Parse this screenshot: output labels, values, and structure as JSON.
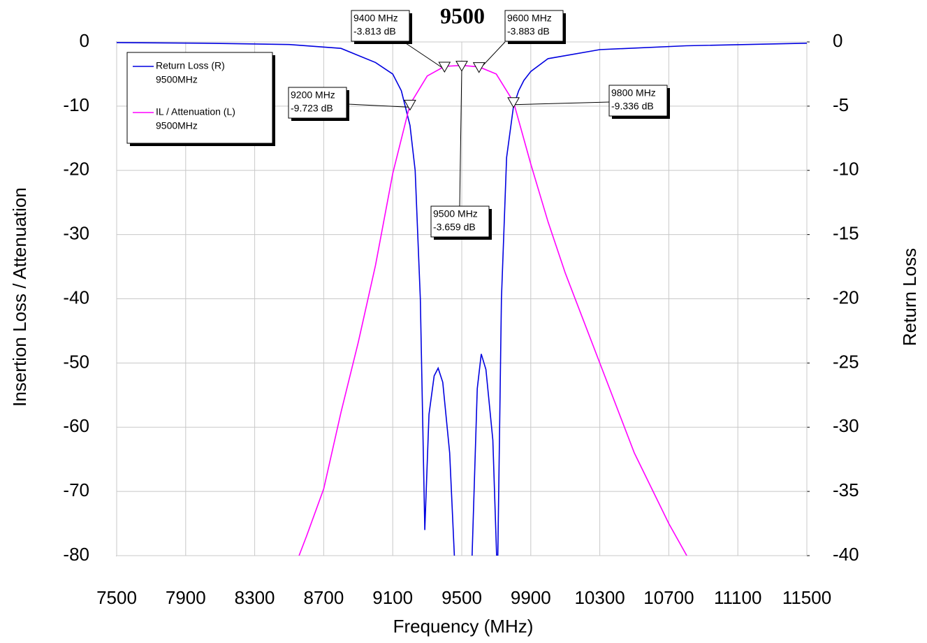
{
  "chart_data": {
    "type": "line",
    "title": "9500",
    "xlabel": "Frequency (MHz)",
    "ylabel": "Insertion Loss / Attenuation",
    "y2label": "Return Loss",
    "xlim": [
      7500,
      11500
    ],
    "xticks": [
      7500,
      7900,
      8300,
      8700,
      9100,
      9500,
      9900,
      10300,
      10700,
      11100,
      11500
    ],
    "ylim": [
      -80,
      0
    ],
    "yticks": [
      0,
      -10,
      -20,
      -30,
      -40,
      -50,
      -60,
      -70,
      -80
    ],
    "y2lim": [
      -40,
      0
    ],
    "y2ticks": [
      0,
      -5,
      -10,
      -15,
      -20,
      -25,
      -30,
      -35,
      -40
    ],
    "grid": true,
    "legend": "top-left",
    "series": [
      {
        "name": "Return Loss (R)",
        "note": "9500MHz",
        "color": "#0000e0",
        "axis": "y2",
        "x": [
          7500,
          8000,
          8500,
          8800,
          9000,
          9100,
          9150,
          9200,
          9230,
          9260,
          9286,
          9310,
          9340,
          9363,
          9390,
          9430,
          9464,
          9480,
          9540,
          9560,
          9590,
          9613,
          9640,
          9680,
          9707,
          9730,
          9760,
          9800,
          9830,
          9860,
          9900,
          10000,
          10300,
          10800,
          11500
        ],
        "values": [
          -0.05,
          -0.1,
          -0.2,
          -0.5,
          -1.6,
          -2.5,
          -3.8,
          -6.5,
          -10,
          -20,
          -38,
          -29,
          -26,
          -25.4,
          -26.5,
          -32,
          -42,
          -45,
          -45,
          -40,
          -27,
          -24.3,
          -25.5,
          -31,
          -42,
          -20,
          -9,
          -5,
          -3.8,
          -3,
          -2.3,
          -1.3,
          -0.6,
          -0.3,
          -0.1
        ]
      },
      {
        "name": "IL / Attenuation (L)",
        "note": "9500MHz",
        "color": "#ff00ff",
        "x": [
          8557,
          8600,
          8700,
          8800,
          8900,
          9000,
          9100,
          9200,
          9300,
          9400,
          9500,
          9600,
          9700,
          9800,
          9900,
          10000,
          10100,
          10300,
          10500,
          10700,
          10804
        ],
        "values": [
          -80,
          -77,
          -69.6,
          -57.7,
          -46.8,
          -34.8,
          -20.5,
          -9.723,
          -5.3,
          -3.813,
          -3.659,
          -3.883,
          -5,
          -9.336,
          -19,
          -28,
          -36,
          -50,
          -64,
          -75,
          -80
        ]
      }
    ],
    "markers": [
      {
        "x": 9400,
        "y": -3.813,
        "x_label": "9400 MHz",
        "y_label": "-3.813 dB"
      },
      {
        "x": 9600,
        "y": -3.883,
        "x_label": "9600 MHz",
        "y_label": "-3.883 dB"
      },
      {
        "x": 9200,
        "y": -9.723,
        "x_label": "9200 MHz",
        "y_label": "-9.723 dB"
      },
      {
        "x": 9800,
        "y": -9.336,
        "x_label": "9800 MHz",
        "y_label": "-9.336 dB"
      },
      {
        "x": 9500,
        "y": -3.659,
        "x_label": "9500 MHz",
        "y_label": "-3.659 dB"
      }
    ]
  }
}
